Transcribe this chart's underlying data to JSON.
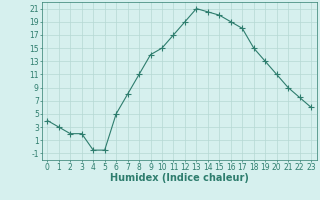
{
  "x": [
    0,
    1,
    2,
    3,
    4,
    5,
    6,
    7,
    8,
    9,
    10,
    11,
    12,
    13,
    14,
    15,
    16,
    17,
    18,
    19,
    20,
    21,
    22,
    23
  ],
  "y": [
    4,
    3,
    2,
    2,
    -0.5,
    -0.5,
    5,
    8,
    11,
    14,
    15,
    17,
    19,
    21,
    20.5,
    20,
    19,
    18,
    15,
    13,
    11,
    9,
    7.5,
    6
  ],
  "line_color": "#2e7d6e",
  "marker": "+",
  "marker_size": 4,
  "background_color": "#d6f0ee",
  "grid_color": "#b5d8d4",
  "xlabel": "Humidex (Indice chaleur)",
  "xlabel_fontsize": 7,
  "xlim": [
    -0.5,
    23.5
  ],
  "ylim": [
    -2,
    22
  ],
  "xticks": [
    0,
    1,
    2,
    3,
    4,
    5,
    6,
    7,
    8,
    9,
    10,
    11,
    12,
    13,
    14,
    15,
    16,
    17,
    18,
    19,
    20,
    21,
    22,
    23
  ],
  "yticks": [
    -1,
    1,
    3,
    5,
    7,
    9,
    11,
    13,
    15,
    17,
    19,
    21
  ],
  "tick_fontsize": 5.5
}
